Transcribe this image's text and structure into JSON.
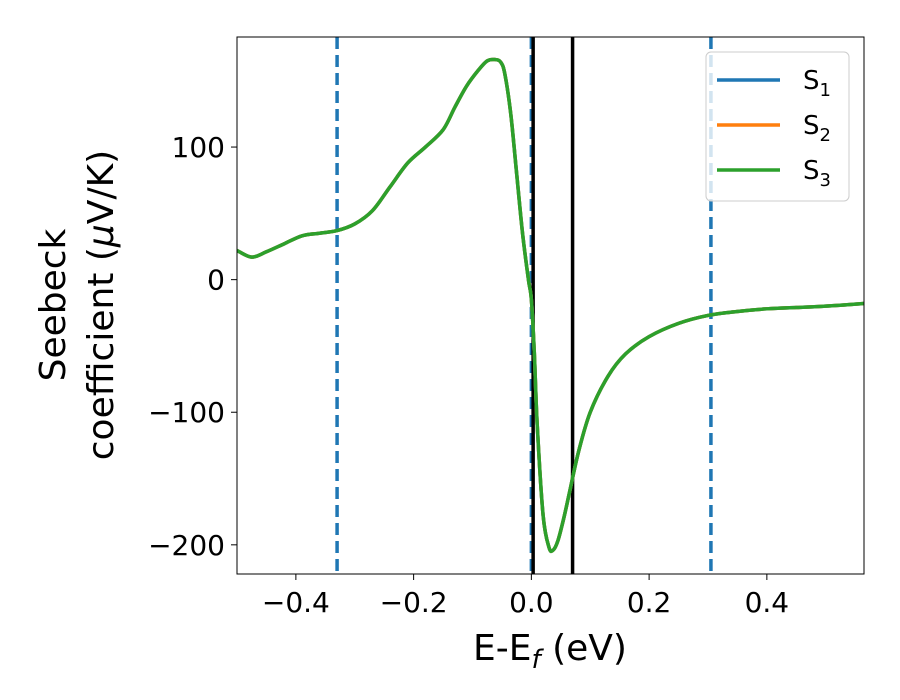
{
  "chart_data": {
    "type": "line",
    "xlabel": {
      "main": "E-E",
      "sub": "f",
      "tail": " (eV)"
    },
    "ylabel": {
      "line1": "Seebeck",
      "line2_prefix": "coefficient  (",
      "line2_mu": "μ",
      "line2_suffix": "V/K)"
    },
    "xlim": [
      -0.5,
      0.565
    ],
    "ylim": [
      -222,
      183
    ],
    "xticks": [
      {
        "value": -0.4,
        "label": "−0.4"
      },
      {
        "value": -0.2,
        "label": "−0.2"
      },
      {
        "value": 0.0,
        "label": "0.0"
      },
      {
        "value": 0.2,
        "label": "0.2"
      },
      {
        "value": 0.4,
        "label": "0.4"
      }
    ],
    "yticks": [
      {
        "value": 100,
        "label": "100"
      },
      {
        "value": 0,
        "label": "0"
      },
      {
        "value": -100,
        "label": "−100"
      },
      {
        "value": -200,
        "label": "−200"
      }
    ],
    "legend_position": "top-right",
    "series": [
      {
        "name": "S",
        "sub": "1",
        "color": "#1f77b4"
      },
      {
        "name": "S",
        "sub": "2",
        "color": "#ff7f0e"
      },
      {
        "name": "S",
        "sub": "3",
        "color": "#2ca02c"
      }
    ],
    "curve": {
      "x": [
        -0.5,
        -0.475,
        -0.45,
        -0.42,
        -0.39,
        -0.36,
        -0.33,
        -0.3,
        -0.27,
        -0.24,
        -0.21,
        -0.18,
        -0.15,
        -0.13,
        -0.11,
        -0.09,
        -0.075,
        -0.062,
        -0.052,
        -0.045,
        -0.035,
        -0.025,
        -0.015,
        -0.005,
        0.0,
        0.005,
        0.01,
        0.02,
        0.03,
        0.037,
        0.045,
        0.055,
        0.065,
        0.08,
        0.1,
        0.13,
        0.16,
        0.2,
        0.25,
        0.3,
        0.35,
        0.4,
        0.45,
        0.5,
        0.565
      ],
      "y": [
        22,
        17,
        21,
        27,
        33,
        35,
        37,
        42,
        52,
        70,
        88,
        100,
        113,
        130,
        146,
        158,
        165,
        166,
        164,
        155,
        125,
        80,
        35,
        0,
        -15,
        -55,
        -110,
        -178,
        -202,
        -204,
        -197,
        -180,
        -160,
        -130,
        -100,
        -73,
        -56,
        -43,
        -33,
        -27,
        -24,
        -22,
        -21,
        -20,
        -18
      ]
    },
    "vlines_dashed": [
      -0.33,
      0.0,
      0.305
    ],
    "vlines_solid": [
      0.003,
      0.07
    ],
    "dashed_color": "#1f77b4",
    "solid_color": "#000000"
  }
}
